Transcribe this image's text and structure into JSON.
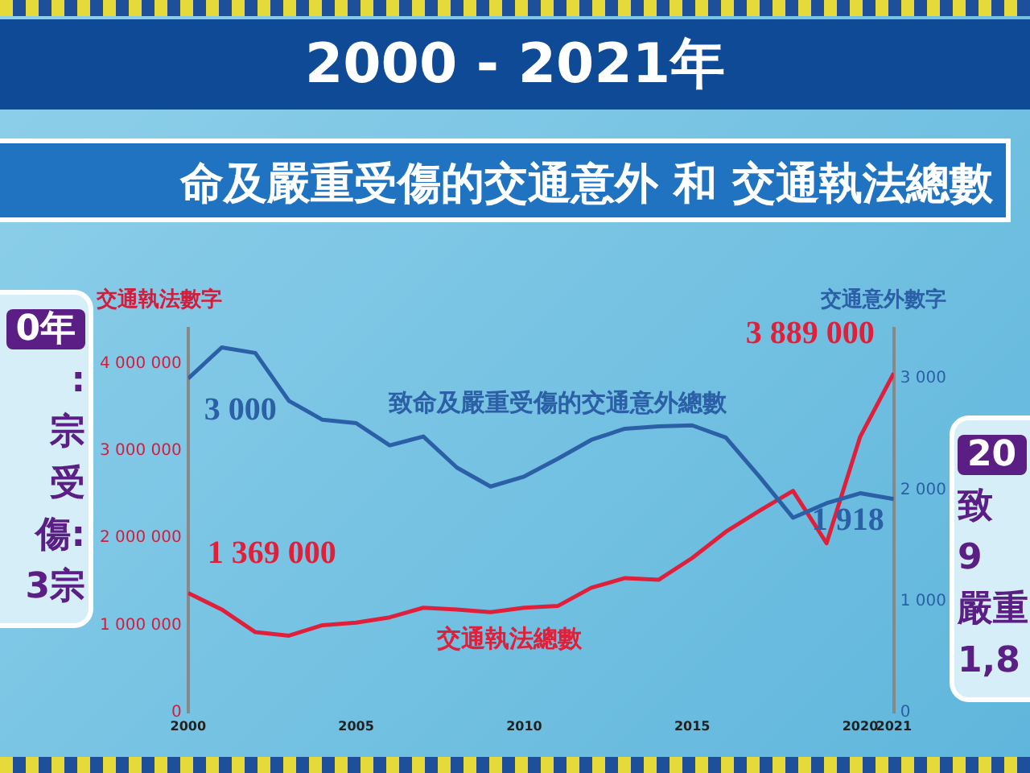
{
  "chart_data": {
    "type": "line",
    "title": "2000 - 2021年",
    "subtitle": "命及嚴重受傷的交通意外 和 交通執法總數",
    "ylabel": "交通執法數字",
    "y2label": "交通意外數字",
    "x": [
      2000,
      2001,
      2002,
      2003,
      2004,
      2005,
      2006,
      2007,
      2008,
      2009,
      2010,
      2011,
      2012,
      2013,
      2014,
      2015,
      2016,
      2017,
      2018,
      2019,
      2020,
      2021
    ],
    "series": [
      {
        "name": "致命及嚴重受傷的交通意外總數",
        "color": "#2b5fa6",
        "axis": "y2",
        "values": [
          3000,
          3280,
          3230,
          2800,
          2630,
          2600,
          2400,
          2480,
          2200,
          2030,
          2120,
          2280,
          2450,
          2550,
          2570,
          2580,
          2470,
          2120,
          1750,
          1880,
          1970,
          1918
        ],
        "value_labels": [
          "3 000",
          null,
          null,
          null,
          null,
          null,
          null,
          null,
          null,
          null,
          null,
          null,
          null,
          null,
          null,
          null,
          null,
          null,
          null,
          null,
          null,
          "1 918"
        ]
      },
      {
        "name": "交通執法總數",
        "color": "#e0203a",
        "values": [
          1369000,
          1180000,
          920000,
          880000,
          1000000,
          1030000,
          1090000,
          1200000,
          1180000,
          1150000,
          1200000,
          1220000,
          1430000,
          1540000,
          1520000,
          1770000,
          2070000,
          2310000,
          2540000,
          1940000,
          3160000,
          3889000
        ],
        "value_labels": [
          "1 369 000",
          null,
          null,
          null,
          null,
          null,
          null,
          null,
          null,
          null,
          null,
          null,
          null,
          null,
          null,
          null,
          null,
          null,
          null,
          null,
          null,
          "3 889 000"
        ]
      }
    ],
    "xlim": [
      2000,
      2021
    ],
    "xticks": [
      2000,
      2005,
      2010,
      2015,
      2020,
      2021
    ],
    "ylim": [
      0,
      4400000
    ],
    "yticks": [
      0,
      {
        "value": 1000000,
        "label": "1 000 000"
      },
      {
        "value": 2000000,
        "label": "2 000 000"
      },
      {
        "value": 3000000,
        "label": "3 000 000"
      },
      {
        "value": 4000000,
        "label": "4 000 000"
      }
    ],
    "y2lim": [
      0,
      3450
    ],
    "y2ticks": [
      0,
      {
        "value": 1000,
        "label": "1 000"
      },
      {
        "value": 2000,
        "label": "2 000"
      },
      {
        "value": 3000,
        "label": "3 000"
      }
    ],
    "grid": false,
    "legend": false,
    "marker": "none",
    "line_style": "solid",
    "annotations": [
      "0年",
      ":",
      "宗",
      "受傷:",
      "3宗",
      "20",
      "致",
      "9",
      "嚴重",
      "1,8"
    ]
  }
}
